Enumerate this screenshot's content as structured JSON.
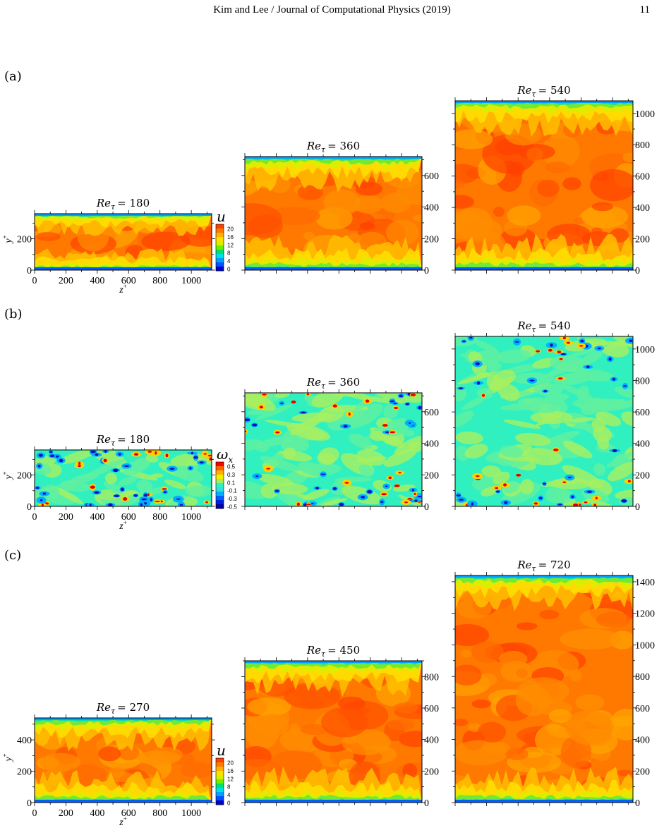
{
  "header": {
    "running_title": "Kim and Lee / Journal of Computational Physics (2019)",
    "page_number": "11"
  },
  "rows": [
    {
      "label": "(a)",
      "variable": "u",
      "colorbar": {
        "title": "u",
        "ticks": [
          "20",
          "16",
          "12",
          "8",
          "4",
          "0"
        ]
      },
      "panels": [
        {
          "title_prefix": "Re",
          "title_sub": "τ",
          "title_value": "= 180",
          "ymax": 360,
          "y_ticks": [
            "0",
            "200"
          ],
          "x_ticks": [
            "0",
            "200",
            "400",
            "600",
            "800",
            "1000"
          ],
          "xlabel": "z",
          "ylabel": "y"
        },
        {
          "title_prefix": "Re",
          "title_sub": "τ",
          "title_value": "= 360",
          "ymax": 720,
          "y_ticks": [
            "0",
            "200",
            "400",
            "600"
          ]
        },
        {
          "title_prefix": "Re",
          "title_sub": "τ",
          "title_value": "= 540",
          "ymax": 1080,
          "y_ticks": [
            "0",
            "200",
            "400",
            "600",
            "800",
            "1000"
          ]
        }
      ]
    },
    {
      "label": "(b)",
      "variable": "omega_x",
      "colorbar": {
        "title": "ω",
        "title_sub": "x",
        "ticks": [
          "0.5",
          "0.3",
          "0.1",
          "-0.1",
          "-0.3",
          "-0.5"
        ]
      },
      "panels": [
        {
          "title_prefix": "Re",
          "title_sub": "τ",
          "title_value": "= 180",
          "ymax": 360,
          "y_ticks": [
            "0",
            "200"
          ],
          "x_ticks": [
            "0",
            "200",
            "400",
            "600",
            "800",
            "1000"
          ],
          "xlabel": "z",
          "ylabel": "y"
        },
        {
          "title_prefix": "Re",
          "title_sub": "τ",
          "title_value": "= 360",
          "ymax": 720,
          "y_ticks": [
            "0",
            "200",
            "400",
            "600"
          ]
        },
        {
          "title_prefix": "Re",
          "title_sub": "τ",
          "title_value": "= 540",
          "ymax": 1080,
          "y_ticks": [
            "0",
            "200",
            "400",
            "600",
            "800",
            "1000"
          ]
        }
      ]
    },
    {
      "label": "(c)",
      "variable": "u",
      "colorbar": {
        "title": "u",
        "ticks": [
          "20",
          "16",
          "12",
          "8",
          "4",
          "0"
        ]
      },
      "panels": [
        {
          "title_prefix": "Re",
          "title_sub": "τ",
          "title_value": "= 270",
          "ymax": 540,
          "y_ticks": [
            "0",
            "200",
            "400"
          ],
          "x_ticks": [
            "0",
            "200",
            "400",
            "600",
            "800",
            "1000"
          ],
          "xlabel": "z",
          "ylabel": "y"
        },
        {
          "title_prefix": "Re",
          "title_sub": "τ",
          "title_value": "= 450",
          "ymax": 900,
          "y_ticks": [
            "0",
            "200",
            "400",
            "600",
            "800"
          ]
        },
        {
          "title_prefix": "Re",
          "title_sub": "τ",
          "title_value": "= 720",
          "ymax": 1440,
          "y_ticks": [
            "0",
            "200",
            "400",
            "600",
            "800",
            "1000",
            "1200",
            "1400"
          ]
        }
      ]
    }
  ],
  "axis_units_superscript": "+",
  "x_range": [
    0,
    1130
  ],
  "colormap": [
    "#0000c8",
    "#0050ff",
    "#00a0ff",
    "#00e0e0",
    "#00e070",
    "#70f000",
    "#d8f000",
    "#ffe000",
    "#ffb000",
    "#ff7a00",
    "#ff4000"
  ]
}
